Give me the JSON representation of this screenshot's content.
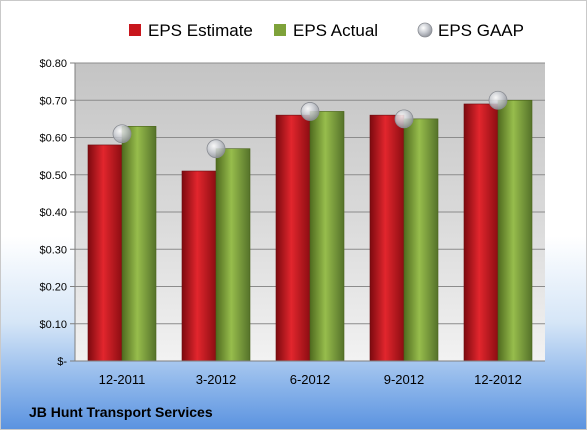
{
  "chart_data": {
    "type": "bar",
    "categories": [
      "12-2011",
      "3-2012",
      "6-2012",
      "9-2012",
      "12-2012"
    ],
    "series": [
      {
        "name": "EPS Estimate",
        "type": "bar",
        "color": "#c8161d",
        "values": [
          0.58,
          0.51,
          0.66,
          0.66,
          0.69
        ]
      },
      {
        "name": "EPS Actual",
        "type": "bar",
        "color": "#7ea23a",
        "values": [
          0.63,
          0.57,
          0.67,
          0.65,
          0.7
        ]
      },
      {
        "name": "EPS GAAP",
        "type": "scatter",
        "color": "#b8bcc4",
        "values": [
          0.61,
          0.57,
          0.67,
          0.65,
          0.7
        ]
      }
    ],
    "y_ticks": [
      "$-",
      "$0.10",
      "$0.20",
      "$0.30",
      "$0.40",
      "$0.50",
      "$0.60",
      "$0.70",
      "$0.80"
    ],
    "ylim": [
      0,
      0.8
    ],
    "grid": true,
    "legend_position": "top"
  },
  "footer": {
    "company": "JB Hunt Transport Services"
  }
}
